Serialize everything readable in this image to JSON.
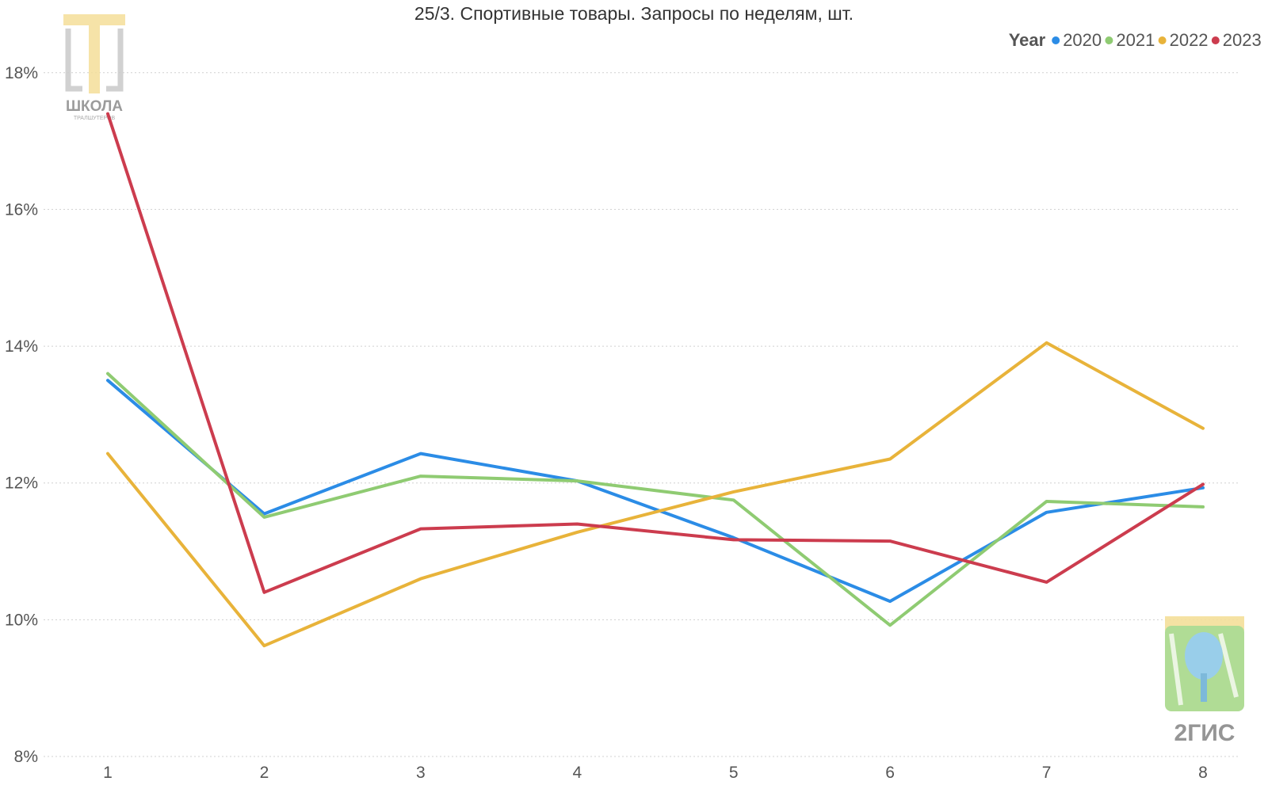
{
  "chart_data": {
    "type": "line",
    "title": "25/3. Спортивные товары. Запросы по неделям, шт.",
    "xlabel": "",
    "ylabel": "",
    "categories": [
      "1",
      "2",
      "3",
      "4",
      "5",
      "6",
      "7",
      "8"
    ],
    "y_ticks": [
      "8%",
      "10%",
      "12%",
      "14%",
      "16%",
      "18%"
    ],
    "y_tick_values": [
      8,
      10,
      12,
      14,
      16,
      18
    ],
    "ylim": [
      8,
      18.6
    ],
    "grid": true,
    "legend_position": "top-right",
    "legend_title": "Year",
    "series": [
      {
        "name": "2020",
        "color": "#2b8ce6",
        "values": [
          13.5,
          11.55,
          12.43,
          12.03,
          11.2,
          10.27,
          11.57,
          11.93
        ]
      },
      {
        "name": "2021",
        "color": "#8fcb72",
        "values": [
          13.6,
          11.5,
          12.1,
          12.03,
          11.75,
          9.92,
          11.73,
          11.65
        ]
      },
      {
        "name": "2022",
        "color": "#e8b33a",
        "values": [
          12.43,
          9.62,
          10.6,
          11.28,
          11.87,
          12.35,
          14.05,
          12.8
        ]
      },
      {
        "name": "2023",
        "color": "#cc3c4e",
        "values": [
          17.4,
          10.4,
          11.33,
          11.4,
          11.17,
          11.15,
          10.55,
          11.98
        ]
      }
    ]
  },
  "logos": {
    "top_left": {
      "name": "ШКОЛА",
      "subtitle": "ТРАЛШУТЕРОВ"
    },
    "bottom_right": {
      "name": "2ГИС"
    }
  }
}
